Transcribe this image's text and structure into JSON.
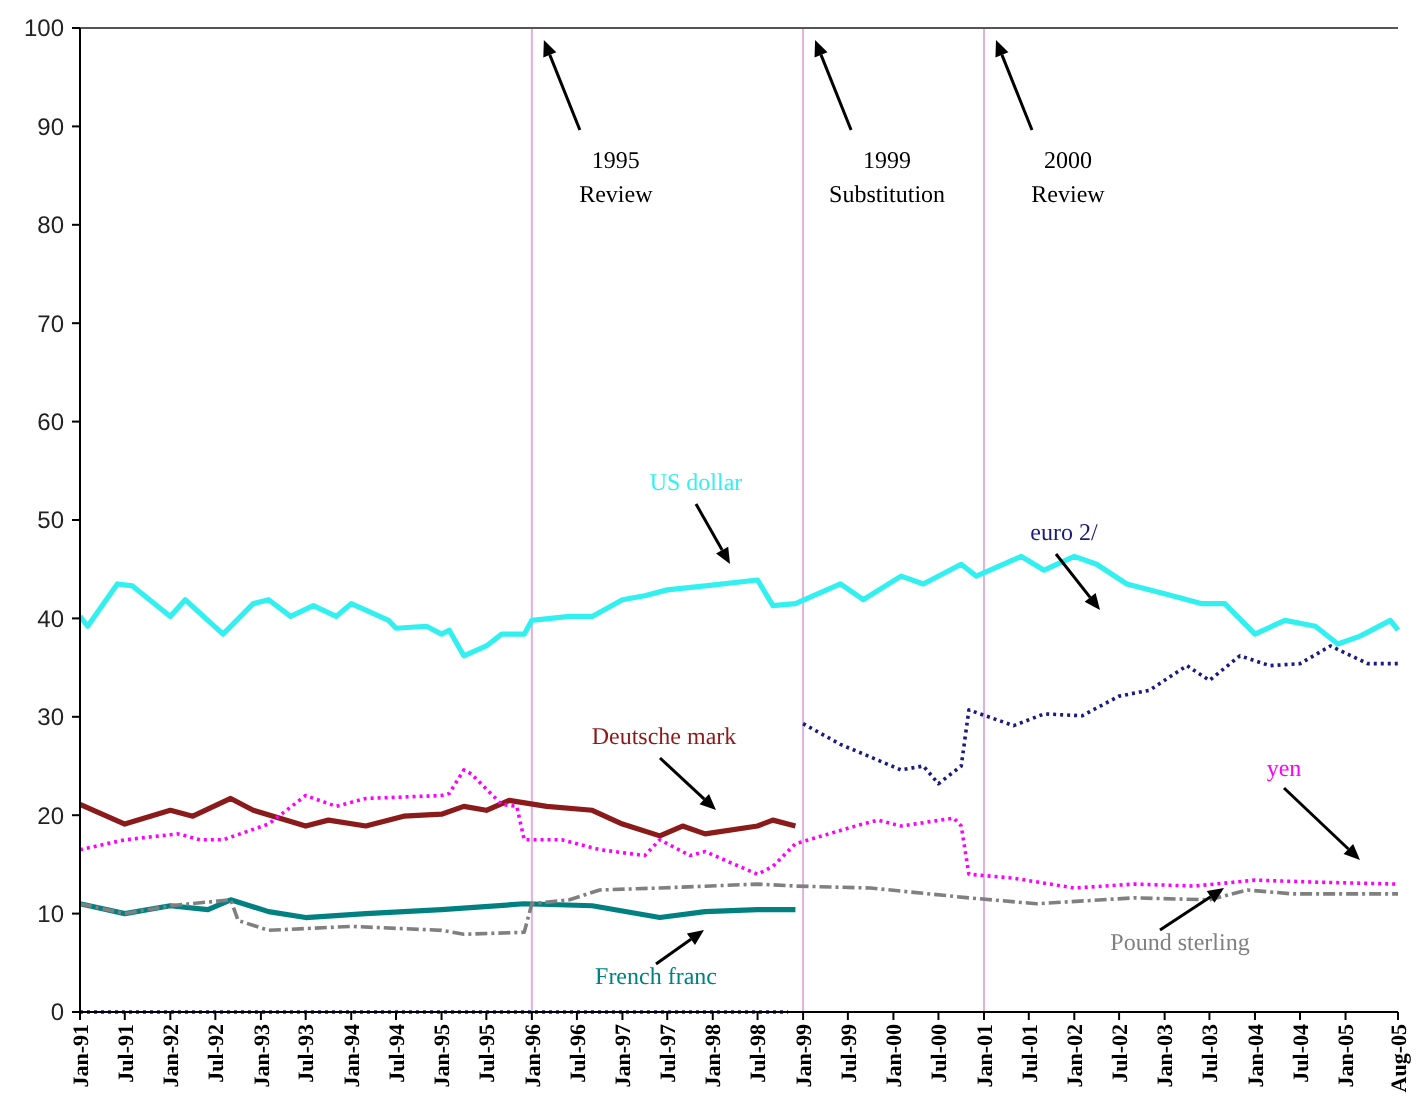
{
  "chart_data": {
    "type": "line",
    "ylim": [
      0,
      100
    ],
    "yticks": [
      0,
      10,
      20,
      30,
      40,
      50,
      60,
      70,
      80,
      90,
      100
    ],
    "xlim": [
      "1991-01",
      "2005-08"
    ],
    "xticks": [
      {
        "value": "1991-01",
        "label": "Jan-91"
      },
      {
        "value": "1991-07",
        "label": "Jul-91"
      },
      {
        "value": "1992-01",
        "label": "Jan-92"
      },
      {
        "value": "1992-07",
        "label": "Jul-92"
      },
      {
        "value": "1993-01",
        "label": "Jan-93"
      },
      {
        "value": "1993-07",
        "label": "Jul-93"
      },
      {
        "value": "1994-01",
        "label": "Jan-94"
      },
      {
        "value": "1994-07",
        "label": "Jul-94"
      },
      {
        "value": "1995-01",
        "label": "Jan-95"
      },
      {
        "value": "1995-07",
        "label": "Jul-95"
      },
      {
        "value": "1996-01",
        "label": "Jan-96"
      },
      {
        "value": "1996-07",
        "label": "Jul-96"
      },
      {
        "value": "1997-01",
        "label": "Jan-97"
      },
      {
        "value": "1997-07",
        "label": "Jul-97"
      },
      {
        "value": "1998-01",
        "label": "Jan-98"
      },
      {
        "value": "1998-07",
        "label": "Jul-98"
      },
      {
        "value": "1999-01",
        "label": "Jan-99"
      },
      {
        "value": "1999-07",
        "label": "Jul-99"
      },
      {
        "value": "2000-01",
        "label": "Jan-00"
      },
      {
        "value": "2000-07",
        "label": "Jul-00"
      },
      {
        "value": "2001-01",
        "label": "Jan-01"
      },
      {
        "value": "2001-07",
        "label": "Jul-01"
      },
      {
        "value": "2002-01",
        "label": "Jan-02"
      },
      {
        "value": "2002-07",
        "label": "Jul-02"
      },
      {
        "value": "2003-01",
        "label": "Jan-03"
      },
      {
        "value": "2003-07",
        "label": "Jul-03"
      },
      {
        "value": "2004-01",
        "label": "Jan-04"
      },
      {
        "value": "2004-07",
        "label": "Jul-04"
      },
      {
        "value": "2005-01",
        "label": "Jan-05"
      },
      {
        "value": "2005-08",
        "label": "Aug-05"
      }
    ],
    "grid": false,
    "marker": "none",
    "ref_lines": [
      {
        "axis": "x",
        "value": "1996-01",
        "label": "1995 Review",
        "color": "#e0b0e0"
      },
      {
        "axis": "x",
        "value": "1999-01",
        "label": "1999 Substitution",
        "color": "#e0b0e0"
      },
      {
        "axis": "x",
        "value": "2001-01",
        "label": "2000 Review",
        "color": "#e0b0e0"
      }
    ],
    "series": [
      {
        "name": "US dollar",
        "color": "#33f0f0",
        "line_style": "solid",
        "x": [
          "1991-01",
          "1991-02",
          "1991-06",
          "1991-08",
          "1992-01",
          "1992-03",
          "1992-08",
          "1992-12",
          "1993-02",
          "1993-05",
          "1993-08",
          "1993-11",
          "1994-01",
          "1994-06",
          "1994-07",
          "1994-11",
          "1995-01",
          "1995-02",
          "1995-04",
          "1995-07",
          "1995-09",
          "1995-12",
          "1996-01",
          "1996-06",
          "1996-09",
          "1997-01",
          "1997-04",
          "1997-07",
          "1997-12",
          "1998-07",
          "1998-09",
          "1998-12",
          "1999-06",
          "1999-09",
          "2000-02",
          "2000-05",
          "2000-10",
          "2000-12",
          "2001-06",
          "2001-09",
          "2002-01",
          "2002-04",
          "2002-08",
          "2003-01",
          "2003-06",
          "2003-09",
          "2004-01",
          "2004-05",
          "2004-09",
          "2004-12",
          "2005-03",
          "2005-07",
          "2005-08"
        ],
        "values": [
          40.2,
          39.2,
          43.5,
          43.3,
          40.2,
          41.9,
          38.4,
          41.5,
          41.9,
          40.2,
          41.3,
          40.2,
          41.5,
          39.8,
          39.0,
          39.2,
          38.4,
          38.8,
          36.2,
          37.2,
          38.4,
          38.4,
          39.8,
          40.2,
          40.2,
          41.9,
          42.3,
          42.9,
          43.3,
          43.9,
          41.3,
          41.5,
          43.5,
          41.9,
          44.3,
          43.5,
          45.5,
          44.3,
          46.3,
          44.9,
          46.3,
          45.5,
          43.5,
          42.5,
          41.5,
          41.5,
          38.4,
          39.8,
          39.2,
          37.4,
          38.2,
          39.8,
          38.8
        ]
      },
      {
        "name": "euro 2/",
        "color": "#1a1a80",
        "line_style": "dotted",
        "x": [
          "1991-01",
          "1998-11",
          "1998-12",
          "1999-01",
          "1999-06",
          "2000-02",
          "2000-05",
          "2000-07",
          "2000-10",
          "2000-11",
          "2001-05",
          "2001-09",
          "2002-02",
          "2002-07",
          "2002-11",
          "2003-04",
          "2003-07",
          "2003-11",
          "2004-03",
          "2004-07",
          "2004-11",
          "2005-04",
          "2005-08"
        ],
        "values": [
          0,
          0,
          null,
          29.3,
          27.2,
          24.6,
          25.0,
          23.2,
          25.0,
          30.7,
          29.1,
          30.3,
          30.1,
          32.1,
          32.7,
          35.2,
          33.7,
          36.2,
          35.2,
          35.4,
          37.2,
          35.4,
          35.4
        ]
      },
      {
        "name": "Deutsche mark",
        "color": "#8b1a1a",
        "line_style": "solid",
        "x": [
          "1991-01",
          "1991-07",
          "1992-01",
          "1992-04",
          "1992-09",
          "1992-12",
          "1993-07",
          "1993-10",
          "1994-03",
          "1994-08",
          "1995-01",
          "1995-04",
          "1995-07",
          "1995-10",
          "1996-03",
          "1996-09",
          "1997-01",
          "1997-06",
          "1997-09",
          "1997-12",
          "1998-07",
          "1998-09",
          "1998-12"
        ],
        "values": [
          21.1,
          19.1,
          20.5,
          19.9,
          21.7,
          20.5,
          18.9,
          19.5,
          18.9,
          19.9,
          20.1,
          20.9,
          20.5,
          21.5,
          20.9,
          20.5,
          19.1,
          17.9,
          18.9,
          18.1,
          18.9,
          19.5,
          18.9
        ]
      },
      {
        "name": "yen",
        "color": "#ff00ff",
        "line_style": "dotted",
        "x": [
          "1991-01",
          "1991-07",
          "1992-02",
          "1992-05",
          "1992-08",
          "1993-02",
          "1993-07",
          "1993-11",
          "1994-03",
          "1995-01",
          "1995-02",
          "1995-04",
          "1995-05",
          "1995-09",
          "1995-11",
          "1995-12",
          "1996-05",
          "1996-10",
          "1997-04",
          "1997-06",
          "1997-10",
          "1997-12",
          "1998-07",
          "1998-09",
          "1998-12",
          "1999-08",
          "1999-11",
          "2000-02",
          "2000-09",
          "2000-10",
          "2000-11",
          "2001-05",
          "2002-01",
          "2002-09",
          "2003-05",
          "2004-01",
          "2004-09",
          "2005-08"
        ],
        "values": [
          16.5,
          17.5,
          18.1,
          17.5,
          17.5,
          19.1,
          22.0,
          20.9,
          21.7,
          22.0,
          22.2,
          24.6,
          24.2,
          21.1,
          20.9,
          17.5,
          17.5,
          16.5,
          15.9,
          17.5,
          15.9,
          16.3,
          14.0,
          14.8,
          17.1,
          18.9,
          19.5,
          18.9,
          19.7,
          18.9,
          14.0,
          13.6,
          12.6,
          13.0,
          12.8,
          13.4,
          13.2,
          13.0
        ]
      },
      {
        "name": "French franc",
        "color": "#008080",
        "line_style": "solid",
        "x": [
          "1991-01",
          "1991-07",
          "1992-01",
          "1992-06",
          "1992-09",
          "1993-02",
          "1993-07",
          "1994-03",
          "1995-01",
          "1995-12",
          "1996-09",
          "1997-06",
          "1997-12",
          "1998-07",
          "1998-12"
        ],
        "values": [
          11.0,
          10.0,
          10.8,
          10.4,
          11.4,
          10.2,
          9.6,
          10.0,
          10.4,
          11.0,
          10.8,
          9.6,
          10.2,
          10.4,
          10.4
        ]
      },
      {
        "name": "Pound sterling",
        "color": "#808080",
        "line_style": "dashed",
        "x": [
          "1991-01",
          "1991-07",
          "1992-01",
          "1992-09",
          "1992-10",
          "1993-02",
          "1994-01",
          "1995-01",
          "1995-04",
          "1995-12",
          "1996-01",
          "1996-06",
          "1996-10",
          "1997-06",
          "1998-07",
          "1998-12",
          "1999-10",
          "2000-11",
          "2001-08",
          "2002-09",
          "2003-07",
          "2003-12",
          "2004-06",
          "2005-08"
        ],
        "values": [
          11.0,
          10.0,
          10.8,
          11.4,
          9.3,
          8.3,
          8.7,
          8.3,
          7.9,
          8.1,
          11.0,
          11.4,
          12.4,
          12.6,
          13.0,
          12.8,
          12.6,
          11.6,
          11.0,
          11.6,
          11.4,
          12.4,
          12.0,
          12.0
        ]
      }
    ]
  }
}
